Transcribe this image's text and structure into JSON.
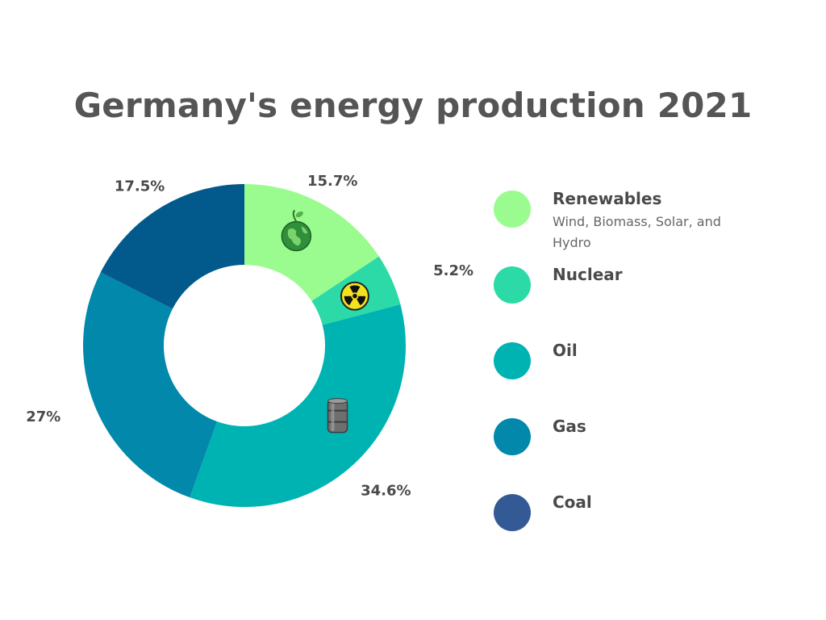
{
  "chart_data": {
    "type": "pie",
    "title": "Germany's energy production 2021",
    "donut": true,
    "slices": [
      {
        "label": "Renewables",
        "value": 15.7,
        "value_label": "15.7%",
        "color": "#9afc8e",
        "icon": "earth-icon"
      },
      {
        "label": "Nuclear",
        "value": 5.2,
        "value_label": "5.2%",
        "color": "#2bdaa6",
        "icon": "radiation-icon"
      },
      {
        "label": "Oil",
        "value": 34.6,
        "value_label": "34.6%",
        "color": "#00b3b3",
        "icon": "oil-barrel-icon"
      },
      {
        "label": "Gas",
        "value": 27,
        "value_label": "27%",
        "color": "#0188aa",
        "icon": ""
      },
      {
        "label": "Coal",
        "value": 17.5,
        "value_label": "17.5%",
        "color": "#015a8b",
        "icon": ""
      }
    ],
    "legend": [
      {
        "name": "Renewables",
        "description": "Wind, Biomass, Solar, and Hydro",
        "color": "#9afc8e"
      },
      {
        "name": "Nuclear",
        "description": "",
        "color": "#2bdaa6"
      },
      {
        "name": "Oil",
        "description": "",
        "color": "#00b3b3"
      },
      {
        "name": "Gas",
        "description": "",
        "color": "#0188aa"
      },
      {
        "name": "Coal",
        "description": "",
        "color": "#345a96"
      }
    ],
    "legend_placement": "right"
  }
}
